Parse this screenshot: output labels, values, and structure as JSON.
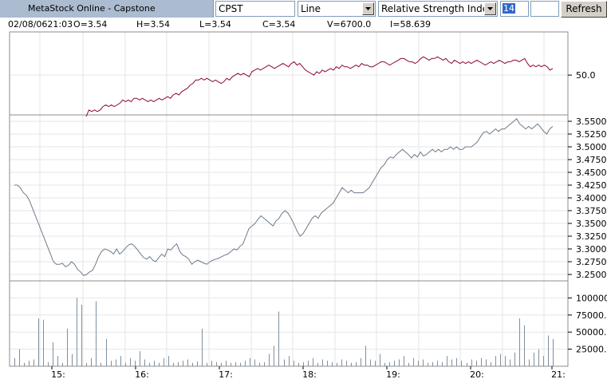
{
  "toolbar": {
    "app_title": "MetaStock Online - Capstone",
    "symbol": "CPST",
    "chart_type": "Line",
    "indicator": "Relative Strength Index",
    "period": "14",
    "refresh_label": "Refresh"
  },
  "info": {
    "timestamp": "02/08/0621:03",
    "open": "O=3.54",
    "high": "H=3.54",
    "low": "L=3.54",
    "close": "C=3.54",
    "volume": "V=6700.0",
    "indicator_value": "I=58.639"
  },
  "colors": {
    "rsi_line": "#8b0a2a",
    "price_line": "#6b7a8a",
    "volume_bars": "#7f8f9f",
    "grid": "#e6e6e6",
    "frame": "#8c8c8c"
  },
  "chart_data": [
    {
      "type": "line",
      "panel": "indicator",
      "ytick_labels": [
        "50.0"
      ],
      "ylim": [
        26,
        76
      ],
      "values": [
        25,
        29,
        28,
        29,
        28,
        29,
        31,
        32,
        31,
        32,
        31,
        32,
        33,
        35,
        34,
        35,
        34,
        36,
        36,
        35,
        36,
        35,
        34,
        35,
        34,
        35,
        36,
        35,
        36,
        37,
        36,
        38,
        39,
        38,
        40,
        41,
        42,
        44,
        45,
        47,
        47,
        48,
        47,
        48,
        47,
        46,
        47,
        46,
        45,
        46,
        48,
        47,
        49,
        50,
        51,
        50,
        51,
        50,
        49,
        52,
        53,
        54,
        53,
        54,
        55,
        56,
        55,
        54,
        55,
        56,
        57,
        56,
        55,
        57,
        58,
        56,
        57,
        55,
        53,
        52,
        51,
        50,
        52,
        51,
        53,
        52,
        53,
        54,
        53,
        55,
        54,
        56,
        55,
        55,
        54,
        55,
        56,
        55,
        57,
        56,
        56,
        55,
        55,
        56,
        57,
        58,
        58,
        57,
        56,
        57,
        58,
        59,
        60,
        60,
        59,
        58,
        58,
        57,
        58,
        60,
        61,
        60,
        59,
        60,
        60,
        61,
        60,
        59,
        60,
        58,
        57,
        59,
        58,
        57,
        58,
        57,
        58,
        57,
        58,
        59,
        58,
        57,
        56,
        57,
        58,
        57,
        58,
        59,
        58,
        57,
        58,
        58,
        59,
        59,
        58,
        59,
        60,
        57,
        55,
        56,
        55,
        56,
        55,
        56,
        55,
        53,
        54
      ],
      "start_index": 17
    },
    {
      "type": "line",
      "panel": "price",
      "ytick_labels": [
        "3.55000",
        "3.52500",
        "3.50000",
        "3.47500",
        "3.45000",
        "3.42500",
        "3.40000",
        "3.37500",
        "3.35000",
        "3.32500",
        "3.30000",
        "3.27500",
        "3.25000"
      ],
      "ylim": [
        3.2375,
        3.5625
      ],
      "values": [
        3.425,
        3.425,
        3.42,
        3.41,
        3.405,
        3.395,
        3.38,
        3.365,
        3.35,
        3.335,
        3.32,
        3.305,
        3.29,
        3.275,
        3.27,
        3.27,
        3.272,
        3.265,
        3.268,
        3.275,
        3.27,
        3.26,
        3.255,
        3.248,
        3.25,
        3.255,
        3.258,
        3.27,
        3.285,
        3.295,
        3.3,
        3.298,
        3.295,
        3.29,
        3.3,
        3.29,
        3.295,
        3.302,
        3.308,
        3.31,
        3.305,
        3.298,
        3.29,
        3.283,
        3.28,
        3.285,
        3.278,
        3.275,
        3.283,
        3.29,
        3.285,
        3.3,
        3.298,
        3.305,
        3.31,
        3.295,
        3.288,
        3.285,
        3.28,
        3.27,
        3.275,
        3.278,
        3.275,
        3.272,
        3.27,
        3.275,
        3.278,
        3.28,
        3.282,
        3.285,
        3.288,
        3.29,
        3.295,
        3.3,
        3.298,
        3.305,
        3.31,
        3.325,
        3.34,
        3.345,
        3.35,
        3.358,
        3.365,
        3.36,
        3.355,
        3.35,
        3.345,
        3.355,
        3.36,
        3.37,
        3.375,
        3.37,
        3.36,
        3.348,
        3.335,
        3.325,
        3.33,
        3.34,
        3.35,
        3.36,
        3.365,
        3.36,
        3.37,
        3.375,
        3.38,
        3.385,
        3.39,
        3.4,
        3.41,
        3.42,
        3.415,
        3.41,
        3.415,
        3.41,
        3.41,
        3.41,
        3.41,
        3.415,
        3.42,
        3.43,
        3.44,
        3.45,
        3.46,
        3.465,
        3.475,
        3.48,
        3.478,
        3.485,
        3.49,
        3.495,
        3.49,
        3.485,
        3.478,
        3.485,
        3.48,
        3.49,
        3.482,
        3.485,
        3.49,
        3.495,
        3.49,
        3.495,
        3.49,
        3.495,
        3.495,
        3.5,
        3.495,
        3.5,
        3.495,
        3.495,
        3.5,
        3.5,
        3.5,
        3.505,
        3.51,
        3.52,
        3.528,
        3.53,
        3.525,
        3.53,
        3.535,
        3.53,
        3.535,
        3.535,
        3.54,
        3.545,
        3.55,
        3.555,
        3.545,
        3.54,
        3.535,
        3.54,
        3.535,
        3.54,
        3.545,
        3.538,
        3.53,
        3.525,
        3.535,
        3.54
      ]
    },
    {
      "type": "bar",
      "panel": "volume",
      "ytick_labels": [
        "100000..",
        "75000..",
        "50000..",
        "25000.."
      ],
      "ylim": [
        0,
        125000
      ],
      "values": [
        12000,
        25000,
        5000,
        8000,
        10000,
        70000,
        68000,
        6000,
        35000,
        15000,
        5000,
        55000,
        18000,
        100000,
        90000,
        5000,
        12000,
        95000,
        5000,
        40000,
        8000,
        10000,
        15000,
        5000,
        12000,
        8000,
        22000,
        10000,
        5000,
        8000,
        5000,
        12000,
        15000,
        5000,
        6000,
        8000,
        10000,
        5000,
        7000,
        55000,
        5000,
        8000,
        6000,
        5000,
        8000,
        5000,
        6000,
        5000,
        8000,
        12000,
        10000,
        5000,
        6000,
        18000,
        30000,
        80000,
        10000,
        15000,
        8000,
        5000,
        6000,
        8000,
        12000,
        5000,
        10000,
        8000,
        6000,
        5000,
        10000,
        8000,
        5000,
        6000,
        12000,
        30000,
        10000,
        8000,
        18000,
        5000,
        6000,
        8000,
        10000,
        15000,
        5000,
        12000,
        8000,
        10000,
        5000,
        6000,
        8000,
        6000,
        15000,
        10000,
        12000,
        8000,
        5000,
        10000,
        8000,
        12000,
        10000,
        6000,
        15000,
        18000,
        15000,
        10000,
        20000,
        70000,
        60000,
        10000,
        20000,
        25000,
        15000,
        45000,
        40000
      ]
    }
  ],
  "xaxis": {
    "tick_labels": [
      "15:",
      "16:",
      "17:",
      "18:",
      "19:",
      "20:",
      "21:"
    ]
  }
}
